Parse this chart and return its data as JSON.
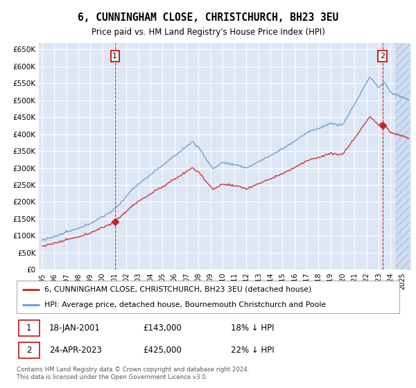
{
  "title": "6, CUNNINGHAM CLOSE, CHRISTCHURCH, BH23 3EU",
  "subtitle": "Price paid vs. HM Land Registry's House Price Index (HPI)",
  "ylim": [
    0,
    670000
  ],
  "yticks": [
    0,
    50000,
    100000,
    150000,
    200000,
    250000,
    300000,
    350000,
    400000,
    450000,
    500000,
    550000,
    600000,
    650000
  ],
  "ytick_labels": [
    "£0",
    "£50K",
    "£100K",
    "£150K",
    "£200K",
    "£250K",
    "£300K",
    "£350K",
    "£400K",
    "£450K",
    "£500K",
    "£550K",
    "£600K",
    "£650K"
  ],
  "hpi_color": "#6699cc",
  "price_color": "#cc2222",
  "background_color": "#dce6f5",
  "t1_year": 2001.05,
  "t2_year": 2023.33,
  "price1": 143000,
  "price2": 425000,
  "legend_line1": "6, CUNNINGHAM CLOSE, CHRISTCHURCH, BH23 3EU (detached house)",
  "legend_line2": "HPI: Average price, detached house, Bournemouth Christchurch and Poole",
  "footer": "Contains HM Land Registry data © Crown copyright and database right 2024.\nThis data is licensed under the Open Government Licence v3.0.",
  "date1": "18-JAN-2001",
  "date2": "24-APR-2023",
  "note1_pct": "18% ↓ HPI",
  "note2_pct": "22% ↓ HPI"
}
